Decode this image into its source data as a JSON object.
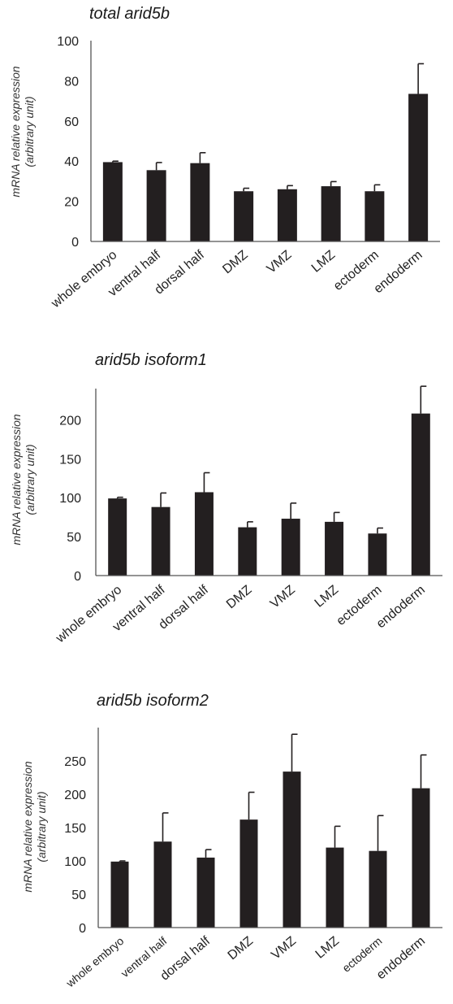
{
  "chart_data": [
    {
      "type": "bar",
      "title": "total arid5b",
      "ylabel": "mRNA relative expression",
      "ylabel2": "(arbitrary unit)",
      "categories": [
        "whole embryo",
        "ventral half",
        "dorsal half",
        "DMZ",
        "VMZ",
        "LMZ",
        "ectoderm",
        "endoderm"
      ],
      "values": [
        39.5,
        35.5,
        39,
        25,
        26,
        27.5,
        25,
        73.5
      ],
      "errors": [
        0.5,
        3.8,
        5.2,
        1.5,
        1.8,
        2.3,
        3.2,
        15
      ],
      "ylim": [
        0,
        100
      ],
      "yticks": [
        0,
        20,
        40,
        60,
        80,
        100
      ],
      "grid": false
    },
    {
      "type": "bar",
      "title": "arid5b isoform1",
      "ylabel": "mRNA relative expression",
      "ylabel2": "(arbitrary unit)",
      "categories": [
        "whole embryo",
        "ventral half",
        "dorsal half",
        "DMZ",
        "VMZ",
        "LMZ",
        "ectoderm",
        "endoderm"
      ],
      "values": [
        99,
        88,
        107,
        62,
        73,
        69,
        54,
        208
      ],
      "errors": [
        1.5,
        18,
        25,
        7,
        20,
        12,
        7,
        35
      ],
      "ylim": [
        0,
        240
      ],
      "yticks": [
        0,
        50,
        100,
        150,
        200
      ],
      "grid": false
    },
    {
      "type": "bar",
      "title": "arid5b isoform2",
      "ylabel": "mRNA relative expression",
      "ylabel2": "(arbitrary unit)",
      "categories": [
        "whole embryo",
        "ventral half",
        "dorsal half",
        "DMZ",
        "VMZ",
        "LMZ",
        "ectoderm",
        "endoderm"
      ],
      "values": [
        99,
        129,
        105,
        162,
        234,
        120,
        115,
        209
      ],
      "errors": [
        1,
        43,
        12,
        41,
        56,
        32,
        53,
        50
      ],
      "ylim": [
        0,
        300
      ],
      "yticks": [
        0,
        50,
        100,
        150,
        200,
        250
      ],
      "grid": false
    }
  ]
}
